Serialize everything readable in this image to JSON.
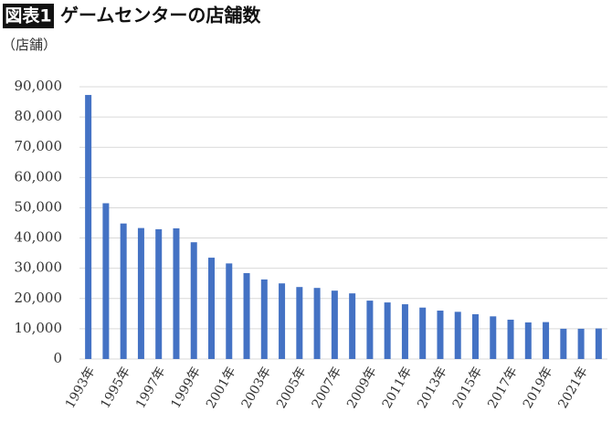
{
  "chart_data": {
    "type": "bar",
    "badge": "図表1",
    "title": "ゲームセンターの店舗数",
    "y_label": "（店舗）",
    "categories": [
      "1993年",
      null,
      "1995年",
      null,
      "1997年",
      null,
      "1999年",
      null,
      "2001年",
      null,
      "2003年",
      null,
      "2005年",
      null,
      "2007年",
      null,
      "2009年",
      null,
      "2011年",
      null,
      "2013年",
      null,
      "2015年",
      null,
      "2017年",
      null,
      "2019年",
      null,
      "2021年",
      null
    ],
    "values": [
      87300,
      51500,
      44800,
      43300,
      42900,
      43200,
      38600,
      33500,
      31600,
      28400,
      26300,
      25000,
      23800,
      23500,
      22600,
      21700,
      19300,
      18700,
      18100,
      17000,
      16000,
      15600,
      14800,
      14100,
      13000,
      12100,
      12200,
      10000,
      10000,
      10100
    ],
    "color": "#4472c4",
    "ylim": [
      0,
      90000
    ],
    "yticks": [
      0,
      {
        "value": 10000,
        "label": "10,000"
      },
      {
        "value": 20000,
        "label": "20,000"
      },
      {
        "value": 30000,
        "label": "30,000"
      },
      {
        "value": 40000,
        "label": "40,000"
      },
      {
        "value": 50000,
        "label": "50,000"
      },
      {
        "value": 60000,
        "label": "60,000"
      },
      {
        "value": 70000,
        "label": "70,000"
      },
      {
        "value": 80000,
        "label": "80,000"
      },
      {
        "value": 90000,
        "label": "90,000"
      }
    ],
    "grid": true
  }
}
